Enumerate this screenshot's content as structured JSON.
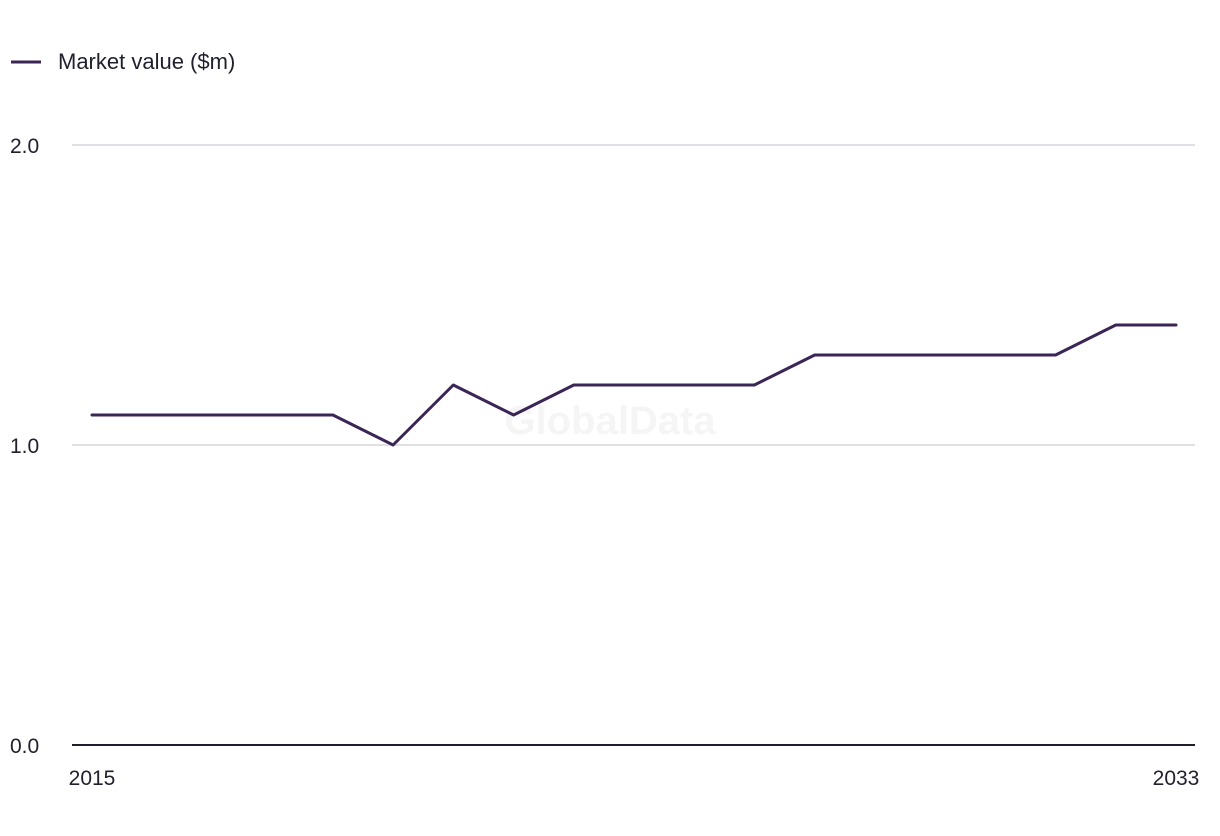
{
  "chart_data": {
    "type": "line",
    "title": "",
    "xlabel": "",
    "ylabel": "",
    "x": [
      2015,
      2016,
      2017,
      2018,
      2019,
      2020,
      2021,
      2022,
      2023,
      2024,
      2025,
      2026,
      2027,
      2028,
      2029,
      2030,
      2031,
      2032,
      2033
    ],
    "x_tick_labels": [
      "2015",
      "2033"
    ],
    "y_tick_labels": [
      "2.0",
      "1.0",
      "0.0"
    ],
    "ylim": [
      0,
      2
    ],
    "grid": true,
    "legend_position": "top-left",
    "series": [
      {
        "name": "Market value ($m)",
        "color": "#3b2556",
        "values": [
          1.1,
          1.1,
          1.1,
          1.1,
          1.1,
          1.0,
          1.2,
          1.1,
          1.2,
          1.2,
          1.2,
          1.2,
          1.3,
          1.3,
          1.3,
          1.3,
          1.3,
          1.4,
          1.4
        ]
      }
    ],
    "watermark": "GlobalData"
  }
}
